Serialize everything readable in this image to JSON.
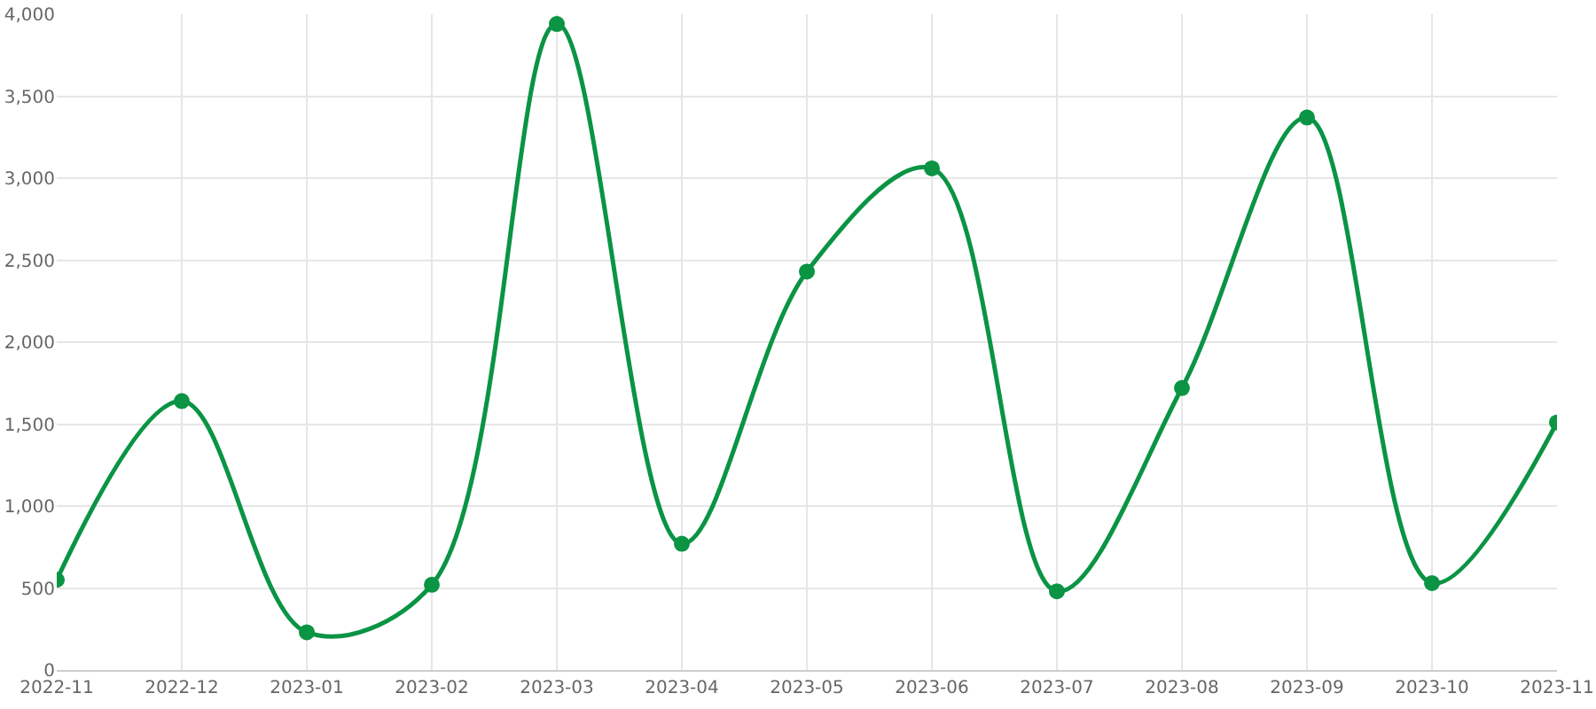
{
  "chart_data": {
    "type": "line",
    "categories": [
      "2022-11",
      "2022-12",
      "2023-01",
      "2023-02",
      "2023-03",
      "2023-04",
      "2023-05",
      "2023-06",
      "2023-07",
      "2023-08",
      "2023-09",
      "2023-10",
      "2023-11"
    ],
    "series": [
      {
        "color": "#0a9444",
        "values": [
          550,
          1640,
          230,
          520,
          3940,
          770,
          2430,
          3060,
          480,
          1720,
          3370,
          530,
          1510
        ]
      }
    ],
    "ylim": [
      0,
      4000
    ],
    "yticks": [
      0,
      {
        "value": 500,
        "label": "500"
      },
      {
        "value": 1000,
        "label": "1,000"
      },
      {
        "value": 1500,
        "label": "1,500"
      },
      {
        "value": 2000,
        "label": "2,000"
      },
      {
        "value": 2500,
        "label": "2,500"
      },
      {
        "value": 3000,
        "label": "3,000"
      },
      {
        "value": 3500,
        "label": "3,500"
      },
      {
        "value": 4000,
        "label": "4,000"
      }
    ],
    "grid": true,
    "marker": "circle",
    "line_style": "solid",
    "legend": false
  }
}
